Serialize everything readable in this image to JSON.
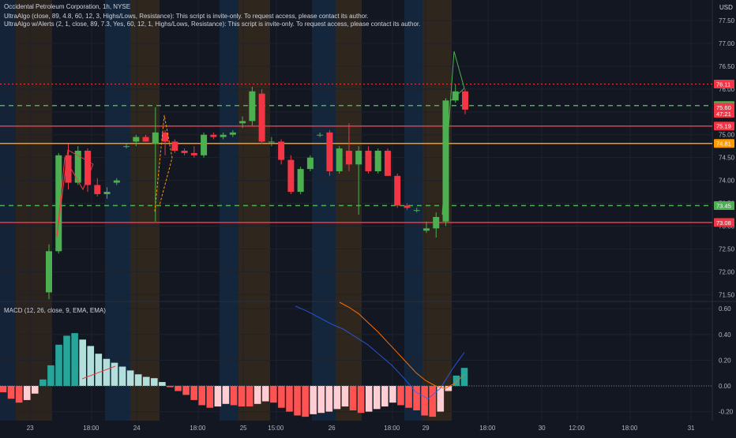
{
  "header": {
    "title_line": "Occidental Petroleum Corporation, 1h, NYSE",
    "indicator1": "UltraAlgo (close, 89, 4.8, 60, 12, 3, Highs/Lows, Resistance): This script is invite-only. To request access, please contact its author.",
    "indicator2": "UltraAlgo w/Alerts (2, 1, close, 89, 7.3, Yes, 60, 12, 1, Highs/Lows, Resistance): This script is invite-only. To request access, please contact its author.",
    "currency": "USD"
  },
  "colors": {
    "background": "#131722",
    "up": "#4caf50",
    "down": "#f23645",
    "grid": "#1e222d",
    "support_line": "#4caf50",
    "resistance_line": "#f23645",
    "pivot_line": "#ff9800",
    "macd_hist_up_strong": "#26a69a",
    "macd_hist_up_weak": "#b2dfdb",
    "macd_hist_down_strong": "#ff5252",
    "macd_hist_down_weak": "#ffcdd2",
    "macd_line": "#2962ff",
    "signal_line": "#ff6d00"
  },
  "chart_data": [
    {
      "type": "candlestick",
      "title": "Occidental Petroleum Corporation, 1h, NYSE",
      "ylim": [
        71.35,
        77.95
      ],
      "y_ticks": [
        "77.50",
        "77.00",
        "76.50",
        "76.00",
        "75.50",
        "75.00",
        "74.50",
        "74.00",
        "73.50",
        "73.00",
        "72.50",
        "72.00",
        "71.50"
      ],
      "candles": [
        {
          "o": 71.55,
          "h": 72.6,
          "l": 71.4,
          "c": 72.45
        },
        {
          "o": 72.45,
          "h": 74.6,
          "l": 72.4,
          "c": 74.55
        },
        {
          "o": 74.55,
          "h": 74.8,
          "l": 73.8,
          "c": 73.95
        },
        {
          "o": 73.95,
          "h": 74.75,
          "l": 73.9,
          "c": 74.65
        },
        {
          "o": 74.65,
          "h": 74.7,
          "l": 73.75,
          "c": 73.9
        },
        {
          "o": 73.9,
          "h": 74.05,
          "l": 73.65,
          "c": 73.7
        },
        {
          "o": 73.7,
          "h": 73.85,
          "l": 73.6,
          "c": 73.75
        },
        {
          "o": 73.95,
          "h": 74.05,
          "l": 73.9,
          "c": 74.0
        },
        {
          "o": 74.75,
          "h": 74.8,
          "l": 74.7,
          "c": 74.75
        },
        {
          "o": 74.85,
          "h": 75.0,
          "l": 74.75,
          "c": 74.95
        },
        {
          "o": 74.95,
          "h": 75.0,
          "l": 74.85,
          "c": 74.85
        },
        {
          "o": 74.8,
          "h": 75.6,
          "l": 73.1,
          "c": 75.05
        },
        {
          "o": 75.05,
          "h": 75.1,
          "l": 74.55,
          "c": 74.85
        },
        {
          "o": 74.85,
          "h": 74.9,
          "l": 74.6,
          "c": 74.65
        },
        {
          "o": 74.65,
          "h": 74.7,
          "l": 74.55,
          "c": 74.6
        },
        {
          "o": 74.6,
          "h": 74.75,
          "l": 74.5,
          "c": 74.55
        },
        {
          "o": 74.55,
          "h": 75.05,
          "l": 74.5,
          "c": 75.0
        },
        {
          "o": 75.0,
          "h": 75.05,
          "l": 74.9,
          "c": 74.95
        },
        {
          "o": 74.95,
          "h": 75.05,
          "l": 74.9,
          "c": 75.0
        },
        {
          "o": 75.0,
          "h": 75.1,
          "l": 74.95,
          "c": 75.05
        },
        {
          "o": 75.25,
          "h": 75.4,
          "l": 75.15,
          "c": 75.3
        },
        {
          "o": 75.3,
          "h": 76.05,
          "l": 75.2,
          "c": 75.95
        },
        {
          "o": 75.9,
          "h": 76.0,
          "l": 74.8,
          "c": 74.85
        },
        {
          "o": 74.85,
          "h": 74.95,
          "l": 74.75,
          "c": 74.85
        },
        {
          "o": 74.85,
          "h": 74.9,
          "l": 74.35,
          "c": 74.45
        },
        {
          "o": 74.45,
          "h": 74.55,
          "l": 73.7,
          "c": 73.75
        },
        {
          "o": 73.75,
          "h": 74.3,
          "l": 73.7,
          "c": 74.25
        },
        {
          "o": 74.25,
          "h": 74.55,
          "l": 74.2,
          "c": 74.5
        },
        {
          "o": 75.0,
          "h": 75.05,
          "l": 74.95,
          "c": 75.0
        },
        {
          "o": 75.05,
          "h": 75.1,
          "l": 74.1,
          "c": 74.2
        },
        {
          "o": 74.2,
          "h": 74.75,
          "l": 74.15,
          "c": 74.7
        },
        {
          "o": 74.65,
          "h": 75.25,
          "l": 74.2,
          "c": 74.35
        },
        {
          "o": 74.35,
          "h": 74.75,
          "l": 73.25,
          "c": 74.65
        },
        {
          "o": 74.65,
          "h": 74.75,
          "l": 74.15,
          "c": 74.2
        },
        {
          "o": 74.2,
          "h": 74.7,
          "l": 74.15,
          "c": 74.65
        },
        {
          "o": 74.65,
          "h": 74.7,
          "l": 74.1,
          "c": 74.1
        },
        {
          "o": 74.1,
          "h": 74.15,
          "l": 73.4,
          "c": 73.45
        },
        {
          "o": 73.45,
          "h": 73.5,
          "l": 73.35,
          "c": 73.4
        },
        {
          "o": 73.35,
          "h": 73.4,
          "l": 73.3,
          "c": 73.35
        },
        {
          "o": 72.9,
          "h": 73.1,
          "l": 72.85,
          "c": 72.95
        },
        {
          "o": 72.95,
          "h": 73.3,
          "l": 72.75,
          "c": 73.2
        },
        {
          "o": 73.1,
          "h": 75.8,
          "l": 73.0,
          "c": 75.75
        },
        {
          "o": 75.75,
          "h": 76.1,
          "l": 75.7,
          "c": 75.95
        },
        {
          "o": 75.95,
          "h": 76.0,
          "l": 75.45,
          "c": 75.55
        }
      ],
      "horizontal_levels": [
        {
          "price": 76.11,
          "label": "76.11",
          "style": "dotted",
          "color": "#f23645"
        },
        {
          "price": 75.64,
          "label": "75.64",
          "style": "dashed",
          "color": "#4caf50"
        },
        {
          "price": 75.6,
          "label": "75.60",
          "style": "none",
          "color": "#f23645"
        },
        {
          "price": 75.19,
          "label": "75.19",
          "style": "solid",
          "color": "#f23645"
        },
        {
          "price": 74.81,
          "label": "74.81",
          "style": "solid",
          "color": "#ff9800"
        },
        {
          "price": 73.45,
          "label": "73.45",
          "style": "dashed",
          "color": "#4caf50"
        },
        {
          "price": 73.08,
          "label": "73.08",
          "style": "solid",
          "color": "#f23645"
        }
      ],
      "countdown": "47:21",
      "x_tick_labels": [
        "23",
        "18:00",
        "24",
        "18:00",
        "25",
        "15:00",
        "26",
        "18:00",
        "29",
        "18:00",
        "30",
        "12:00",
        "18:00",
        "31"
      ]
    },
    {
      "type": "bar",
      "title": "MACD (12, 26, close, 9, EMA, EMA)",
      "ylim": [
        -0.27,
        0.65
      ],
      "y_ticks": [
        "0.60",
        "0.40",
        "0.20",
        "0.00",
        "-0.20"
      ],
      "histogram": [
        -0.05,
        -0.1,
        -0.13,
        -0.11,
        -0.06,
        0.05,
        0.16,
        0.32,
        0.39,
        0.41,
        0.36,
        0.31,
        0.25,
        0.21,
        0.18,
        0.15,
        0.12,
        0.09,
        0.07,
        0.06,
        0.03,
        -0.01,
        -0.04,
        -0.07,
        -0.11,
        -0.15,
        -0.17,
        -0.16,
        -0.14,
        -0.15,
        -0.16,
        -0.16,
        -0.14,
        -0.12,
        -0.13,
        -0.17,
        -0.2,
        -0.23,
        -0.24,
        -0.22,
        -0.21,
        -0.2,
        -0.18,
        -0.16,
        -0.19,
        -0.21,
        -0.2,
        -0.18,
        -0.16,
        -0.13,
        -0.15,
        -0.17,
        -0.19,
        -0.23,
        -0.24,
        -0.2,
        -0.04,
        0.08,
        0.14
      ],
      "macd_line": [
        0.62,
        0.58,
        0.53,
        0.48,
        0.44,
        0.38,
        0.32,
        0.24,
        0.16,
        0.06,
        -0.05,
        -0.1,
        -0.02,
        0.13,
        0.26
      ],
      "signal_line": [
        0.65,
        0.61,
        0.56,
        0.49,
        0.42,
        0.34,
        0.26,
        0.18,
        0.1,
        0.04,
        0.0,
        -0.02,
        0.02,
        0.09
      ]
    }
  ]
}
